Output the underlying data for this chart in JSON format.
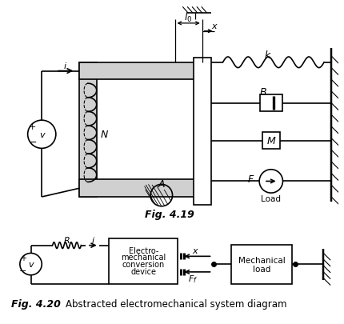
{
  "fig_width": 4.31,
  "fig_height": 4.06,
  "dpi": 100,
  "bg_color": "#ffffff",
  "line_color": "#000000",
  "fig419_label": "Fig. 4.19",
  "fig420_label": "Fig. 4.20",
  "fig420_caption": "Abstracted electromechanical system diagram"
}
